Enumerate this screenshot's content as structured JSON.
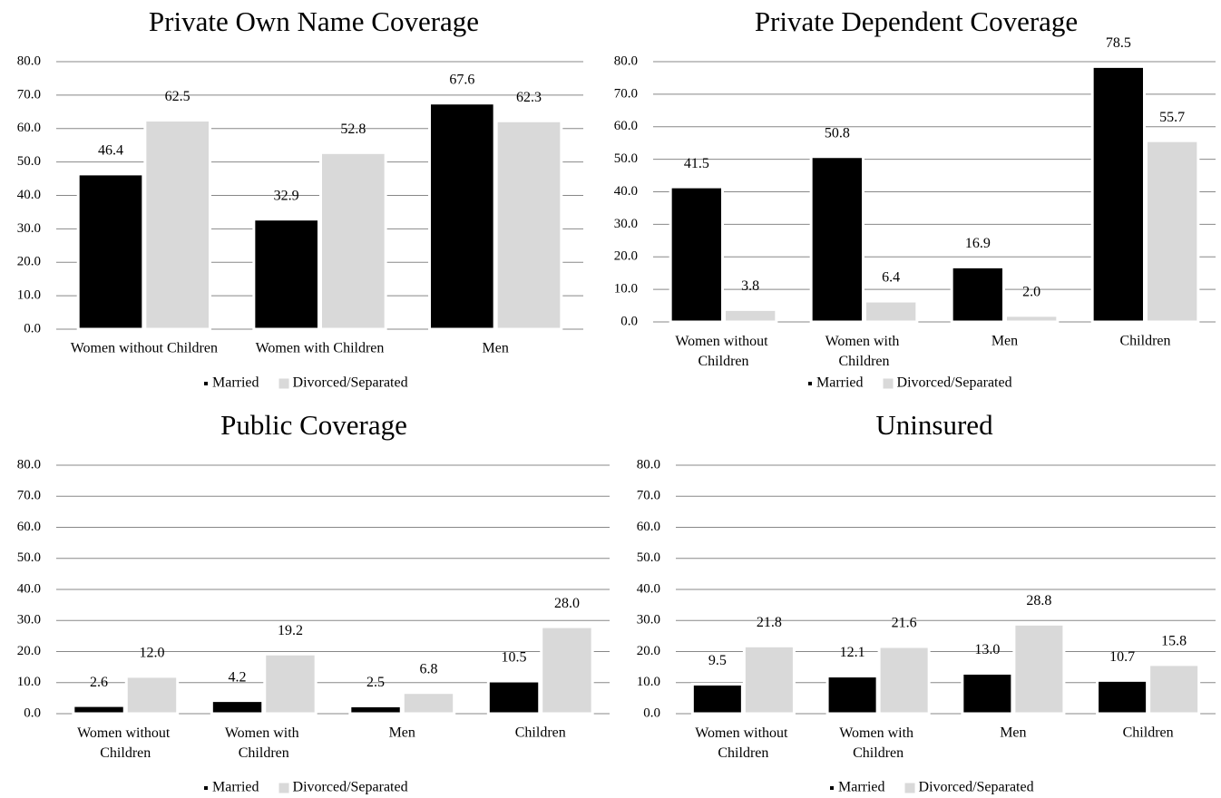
{
  "chart_data": [
    {
      "type": "bar",
      "title": "Private Own Name Coverage",
      "categories": [
        "Women without Children",
        "Women with Children",
        "Men"
      ],
      "series": [
        {
          "name": "Married",
          "color": "#000000",
          "values": [
            46.4,
            32.9,
            67.6
          ],
          "value_labels": [
            "46.4",
            "32.9",
            "67.6"
          ]
        },
        {
          "name": "Divorced/Separated",
          "color": "#d9d9d9",
          "values": [
            62.5,
            52.8,
            62.3
          ],
          "value_labels": [
            "62.5",
            "52.8",
            "62.3"
          ]
        }
      ],
      "ylim": [
        0,
        80
      ],
      "yticks": [
        {
          "value": 0,
          "label": "0.0"
        },
        {
          "value": 10,
          "label": "10.0"
        },
        {
          "value": 20,
          "label": "20.0"
        },
        {
          "value": 30,
          "label": "30.0"
        },
        {
          "value": 40,
          "label": "40.0"
        },
        {
          "value": 50,
          "label": "50.0"
        },
        {
          "value": 60,
          "label": "60.0"
        },
        {
          "value": 70,
          "label": "70.0"
        },
        {
          "value": 80,
          "label": "80.0"
        }
      ],
      "grid": true
    },
    {
      "type": "bar",
      "title": "Private Dependent Coverage",
      "categories": [
        "Women without Children",
        "Women with Children",
        "Men",
        "Children"
      ],
      "series": [
        {
          "name": "Married",
          "color": "#000000",
          "values": [
            41.5,
            50.8,
            16.9,
            78.5
          ],
          "value_labels": [
            "41.5",
            "50.8",
            "16.9",
            "78.5"
          ]
        },
        {
          "name": "Divorced/Separated",
          "color": "#d9d9d9",
          "values": [
            3.8,
            6.4,
            2.0,
            55.7
          ],
          "value_labels": [
            "3.8",
            "6.4",
            "2.0",
            "55.7"
          ]
        }
      ],
      "ylim": [
        0,
        80
      ],
      "yticks": [
        {
          "value": 0,
          "label": "0.0"
        },
        {
          "value": 10,
          "label": "10.0"
        },
        {
          "value": 20,
          "label": "20.0"
        },
        {
          "value": 30,
          "label": "30.0"
        },
        {
          "value": 40,
          "label": "40.0"
        },
        {
          "value": 50,
          "label": "50.0"
        },
        {
          "value": 60,
          "label": "60.0"
        },
        {
          "value": 70,
          "label": "70.0"
        },
        {
          "value": 80,
          "label": "80.0"
        }
      ],
      "grid": true
    },
    {
      "type": "bar",
      "title": "Public Coverage",
      "categories": [
        "Women without Children",
        "Women with Children",
        "Men",
        "Children"
      ],
      "series": [
        {
          "name": "Married",
          "color": "#000000",
          "values": [
            2.6,
            4.2,
            2.5,
            10.5
          ],
          "value_labels": [
            "2.6",
            "4.2",
            "2.5",
            "10.5"
          ]
        },
        {
          "name": "Divorced/Separated",
          "color": "#d9d9d9",
          "values": [
            12.0,
            19.2,
            6.8,
            28.0
          ],
          "value_labels": [
            "12.0",
            "19.2",
            "6.8",
            "28.0"
          ]
        }
      ],
      "ylim": [
        0,
        80
      ],
      "yticks": [
        {
          "value": 0,
          "label": "0.0"
        },
        {
          "value": 10,
          "label": "10.0"
        },
        {
          "value": 20,
          "label": "20.0"
        },
        {
          "value": 30,
          "label": "30.0"
        },
        {
          "value": 40,
          "label": "40.0"
        },
        {
          "value": 50,
          "label": "50.0"
        },
        {
          "value": 60,
          "label": "60.0"
        },
        {
          "value": 70,
          "label": "70.0"
        },
        {
          "value": 80,
          "label": "80.0"
        }
      ],
      "grid": true
    },
    {
      "type": "bar",
      "title": "Uninsured",
      "categories": [
        "Women without Children",
        "Women with Children",
        "Men",
        "Children"
      ],
      "series": [
        {
          "name": "Married",
          "color": "#000000",
          "values": [
            9.5,
            12.1,
            13.0,
            10.7
          ],
          "value_labels": [
            "9.5",
            "12.1",
            "13.0",
            "10.7"
          ]
        },
        {
          "name": "Divorced/Separated",
          "color": "#d9d9d9",
          "values": [
            21.8,
            21.6,
            28.8,
            15.8
          ],
          "value_labels": [
            "21.8",
            "21.6",
            "28.8",
            "15.8"
          ]
        }
      ],
      "ylim": [
        0,
        80
      ],
      "yticks": [
        {
          "value": 0,
          "label": "0.0"
        },
        {
          "value": 10,
          "label": "10.0"
        },
        {
          "value": 20,
          "label": "20.0"
        },
        {
          "value": 30,
          "label": "30.0"
        },
        {
          "value": 40,
          "label": "40.0"
        },
        {
          "value": 50,
          "label": "50.0"
        },
        {
          "value": 60,
          "label": "60.0"
        },
        {
          "value": 70,
          "label": "70.0"
        },
        {
          "value": 80,
          "label": "80.0"
        }
      ],
      "grid": true
    }
  ]
}
